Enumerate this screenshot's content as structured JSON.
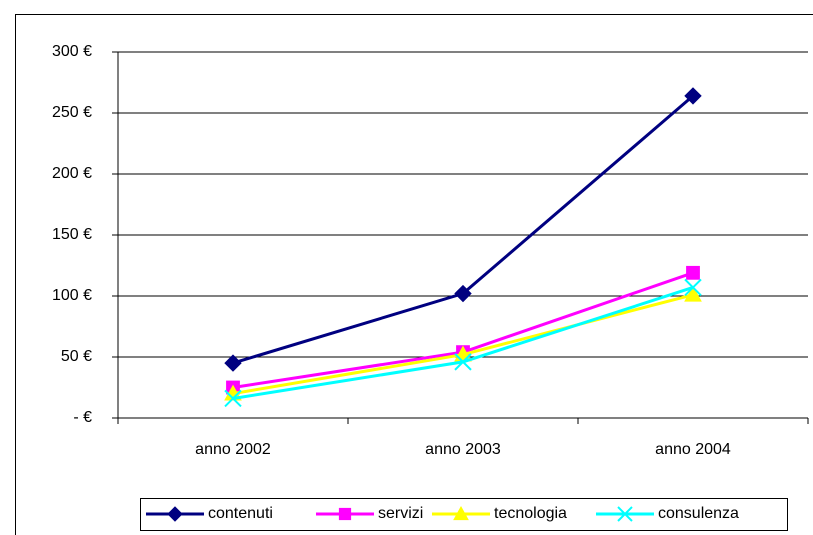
{
  "chart_data": {
    "type": "line",
    "categories": [
      "anno 2002",
      "anno 2003",
      "anno 2004"
    ],
    "series": [
      {
        "name": "contenuti",
        "color": "#000080",
        "marker": "diamond",
        "values": [
          45,
          102,
          264
        ]
      },
      {
        "name": "servizi",
        "color": "#ff00ff",
        "marker": "square",
        "values": [
          25,
          54,
          119
        ]
      },
      {
        "name": "tecnologia",
        "color": "#ffff00",
        "marker": "triangle",
        "values": [
          20,
          52,
          101
        ]
      },
      {
        "name": "consulenza",
        "color": "#00ffff",
        "marker": "x",
        "values": [
          16,
          46,
          107
        ]
      }
    ],
    "ylim": [
      0,
      300
    ],
    "yticks": [
      {
        "value": 0,
        "label": "- €"
      },
      {
        "value": 50,
        "label": "50 €"
      },
      {
        "value": 100,
        "label": "100 €"
      },
      {
        "value": 150,
        "label": "150 €"
      },
      {
        "value": 200,
        "label": "200 €"
      },
      {
        "value": 250,
        "label": "250 €"
      },
      {
        "value": 300,
        "label": "300 €"
      }
    ],
    "grid": true,
    "legend": "bottom"
  }
}
